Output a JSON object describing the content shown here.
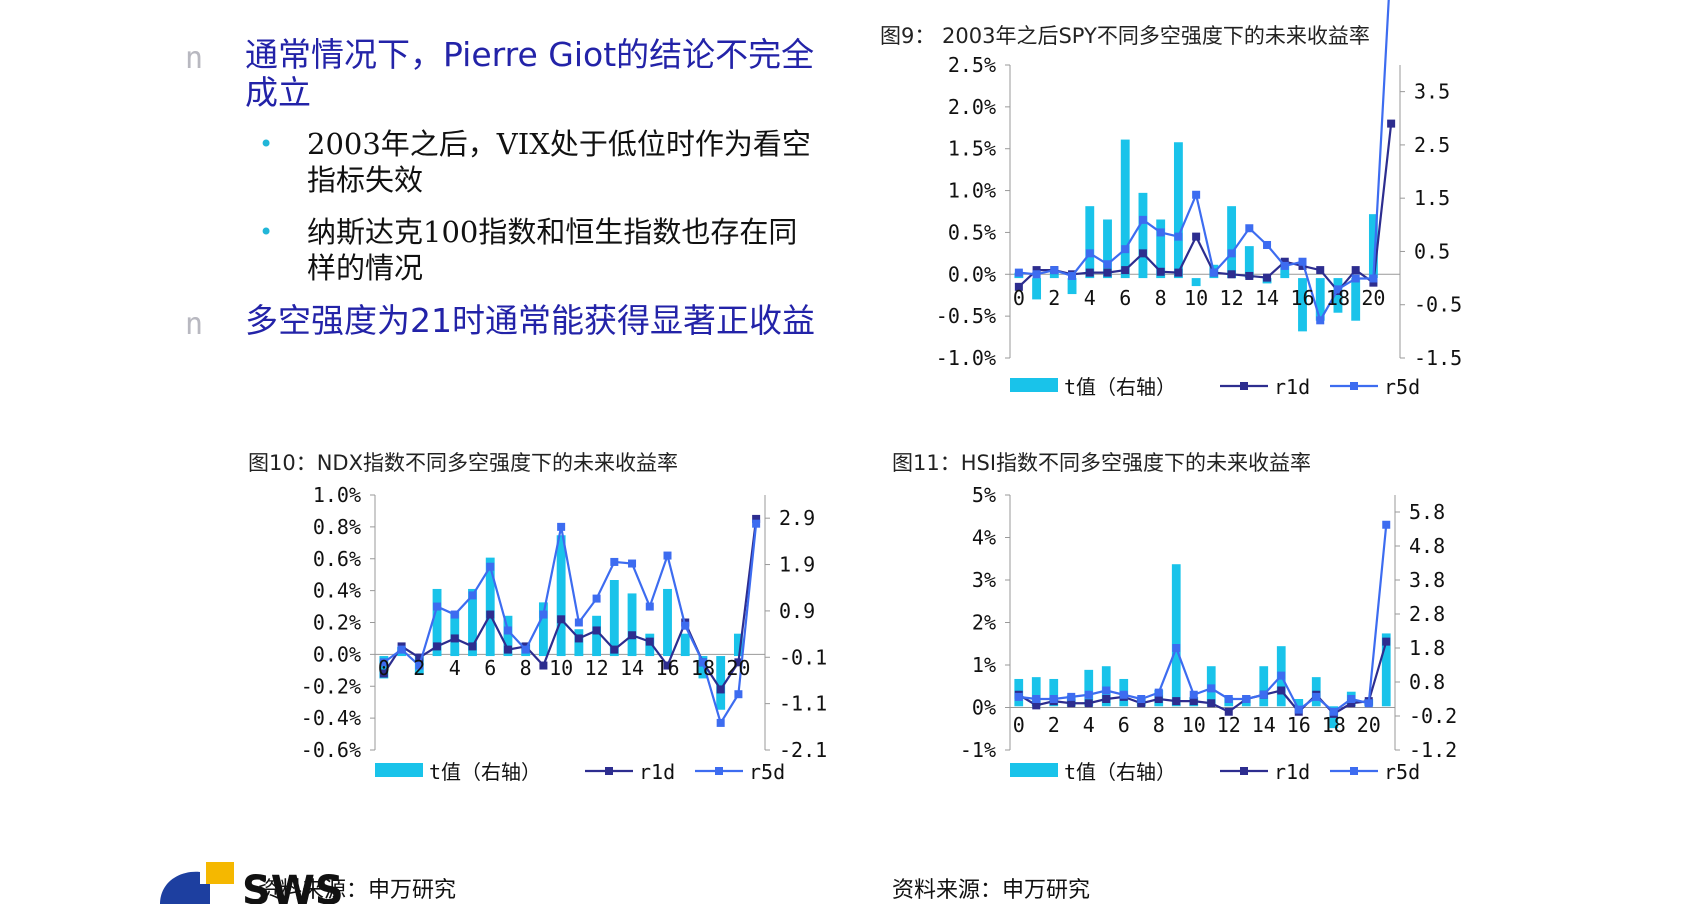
{
  "bullets": [
    {
      "marker": "n",
      "text": "通常情况下，Pierre Giot的结论不完全成立",
      "children": [
        {
          "marker": "•",
          "text": "2003年之后，VIX处于低位时作为看空指标失效"
        },
        {
          "marker": "•",
          "text": "纳斯达克100指数和恒生指数也存在同样的情况"
        }
      ]
    },
    {
      "marker": "n",
      "text": "多空强度为21时通常能获得显著正收益",
      "children": []
    }
  ],
  "colors": {
    "bar": "#19c3ea",
    "r1d": "#2d2d8f",
    "r5d": "#3d6cf0",
    "bullet_text": "#2323a8",
    "sub_bullet": "#21b6d8"
  },
  "chart_data": [
    {
      "type": "bar+line",
      "title": "图9：  2003年之后SPY不同多空强度下的未来收益率",
      "x": [
        0,
        1,
        2,
        3,
        4,
        5,
        6,
        7,
        8,
        9,
        10,
        11,
        12,
        13,
        14,
        15,
        16,
        17,
        18,
        19,
        20,
        21
      ],
      "x_tick_labels": [
        "0",
        "2",
        "4",
        "6",
        "8",
        "10",
        "12",
        "14",
        "16",
        "18",
        "20"
      ],
      "left_axis": {
        "ticks": [
          "2.5%",
          "2.0%",
          "1.5%",
          "1.0%",
          "0.5%",
          "0.0%",
          "-0.5%",
          "-1.0%"
        ],
        "ylim": [
          -1.0,
          2.5
        ]
      },
      "right_axis": {
        "ticks": [
          "3.5",
          "2.5",
          "1.5",
          "0.5",
          "-0.5",
          "-1.5"
        ],
        "ylim": [
          -1.5,
          4.0
        ]
      },
      "series": [
        {
          "name": "t值（右轴）",
          "axis": "right",
          "kind": "bar",
          "values": [
            0.1,
            -0.4,
            0.15,
            -0.3,
            1.35,
            1.1,
            2.6,
            1.6,
            1.1,
            2.55,
            -0.15,
            0.25,
            1.35,
            0.6,
            -0.1,
            0.3,
            -1.0,
            -0.8,
            -0.65,
            -0.8,
            1.2,
            null
          ]
        },
        {
          "name": "r1d",
          "axis": "left",
          "kind": "line",
          "values": [
            -0.15,
            0.05,
            0.05,
            0.0,
            0.02,
            0.02,
            0.05,
            0.25,
            0.03,
            0.02,
            0.45,
            0.02,
            0.0,
            -0.02,
            -0.04,
            0.15,
            0.1,
            0.05,
            -0.2,
            0.05,
            -0.1,
            1.8
          ]
        },
        {
          "name": "r5d",
          "axis": "left",
          "kind": "line",
          "values": [
            0.02,
            0.0,
            0.05,
            -0.02,
            0.25,
            0.12,
            0.3,
            0.65,
            0.5,
            0.45,
            0.95,
            0.02,
            0.25,
            0.55,
            0.35,
            0.1,
            0.15,
            -0.55,
            -0.18,
            -0.05,
            -0.05,
            3.8
          ]
        }
      ]
    },
    {
      "type": "bar+line",
      "title": "图10：NDX指数不同多空强度下的未来收益率",
      "x": [
        0,
        1,
        2,
        3,
        4,
        5,
        6,
        7,
        8,
        9,
        10,
        11,
        12,
        13,
        14,
        15,
        16,
        17,
        18,
        19,
        20,
        21
      ],
      "x_tick_labels": [
        "0",
        "2",
        "4",
        "6",
        "8",
        "10",
        "12",
        "14",
        "16",
        "18",
        "20"
      ],
      "left_axis": {
        "ticks": [
          "1.0%",
          "0.8%",
          "0.6%",
          "0.4%",
          "0.2%",
          "0.0%",
          "-0.2%",
          "-0.4%",
          "-0.6%"
        ],
        "ylim": [
          -0.6,
          1.0
        ]
      },
      "right_axis": {
        "ticks": [
          "2.9",
          "1.9",
          "0.9",
          "-0.1",
          "-1.1",
          "-2.1"
        ],
        "ylim": [
          -2.1,
          3.6
        ]
      },
      "series": [
        {
          "name": "t值（右轴）",
          "axis": "right",
          "kind": "bar",
          "values": [
            -0.5,
            0.2,
            -0.4,
            1.5,
            1.0,
            1.5,
            2.2,
            0.9,
            0.3,
            1.2,
            2.7,
            0.6,
            0.9,
            1.7,
            1.4,
            0.5,
            1.5,
            0.5,
            -0.5,
            -1.2,
            0.5,
            null
          ]
        },
        {
          "name": "r1d",
          "axis": "left",
          "kind": "line",
          "values": [
            -0.12,
            0.05,
            -0.02,
            0.05,
            0.1,
            0.05,
            0.25,
            0.03,
            0.05,
            -0.07,
            0.22,
            0.1,
            0.15,
            0.03,
            0.12,
            0.08,
            -0.07,
            0.2,
            -0.05,
            -0.22,
            -0.05,
            0.85
          ]
        },
        {
          "name": "r5d",
          "axis": "left",
          "kind": "line",
          "values": [
            -0.05,
            0.03,
            -0.07,
            0.3,
            0.25,
            0.37,
            0.55,
            0.15,
            0.03,
            0.25,
            0.8,
            0.2,
            0.35,
            0.58,
            0.57,
            0.3,
            0.62,
            0.18,
            -0.05,
            -0.43,
            -0.25,
            0.82
          ]
        }
      ]
    },
    {
      "type": "bar+line",
      "title": "图11：HSI指数不同多空强度下的未来收益率",
      "x": [
        0,
        1,
        2,
        3,
        4,
        5,
        6,
        7,
        8,
        9,
        10,
        11,
        12,
        13,
        14,
        15,
        16,
        17,
        18,
        19,
        20,
        21
      ],
      "x_tick_labels": [
        "0",
        "2",
        "4",
        "6",
        "8",
        "10",
        "12",
        "14",
        "16",
        "18",
        "20"
      ],
      "left_axis": {
        "ticks": [
          "5%",
          "4%",
          "3%",
          "2%",
          "1%",
          "0%",
          "-1%"
        ],
        "ylim": [
          -1,
          5
        ]
      },
      "right_axis": {
        "ticks": [
          "5.8",
          "4.8",
          "3.8",
          "2.8",
          "1.8",
          "0.8",
          "-0.2",
          "-1.2"
        ],
        "ylim": [
          -1.2,
          5.8
        ]
      },
      "series": [
        {
          "name": "t值（右轴）",
          "axis": "right",
          "kind": "bar",
          "values": [
            0.75,
            0.8,
            0.75,
            0.3,
            1.0,
            1.1,
            0.75,
            0.25,
            0.45,
            3.9,
            0.25,
            1.1,
            0.25,
            0.2,
            1.1,
            1.65,
            0.2,
            0.8,
            -0.6,
            0.4,
            0.2,
            2.0
          ]
        },
        {
          "name": "r1d",
          "axis": "left",
          "kind": "line",
          "values": [
            0.3,
            0.05,
            0.15,
            0.1,
            0.1,
            0.2,
            0.25,
            0.1,
            0.2,
            0.15,
            0.15,
            0.1,
            -0.1,
            0.2,
            0.3,
            0.4,
            -0.1,
            0.3,
            -0.15,
            0.1,
            0.15,
            1.55
          ]
        },
        {
          "name": "r5d",
          "axis": "left",
          "kind": "line",
          "values": [
            0.25,
            0.2,
            0.2,
            0.25,
            0.3,
            0.4,
            0.3,
            0.2,
            0.35,
            1.4,
            0.3,
            0.45,
            0.2,
            0.2,
            0.3,
            0.75,
            -0.05,
            0.25,
            -0.1,
            0.2,
            0.1,
            4.3
          ]
        }
      ]
    }
  ],
  "sources": [
    "资料来源：申万研究",
    "资料来源：申万研究"
  ],
  "logo": {
    "text": "SWS"
  }
}
